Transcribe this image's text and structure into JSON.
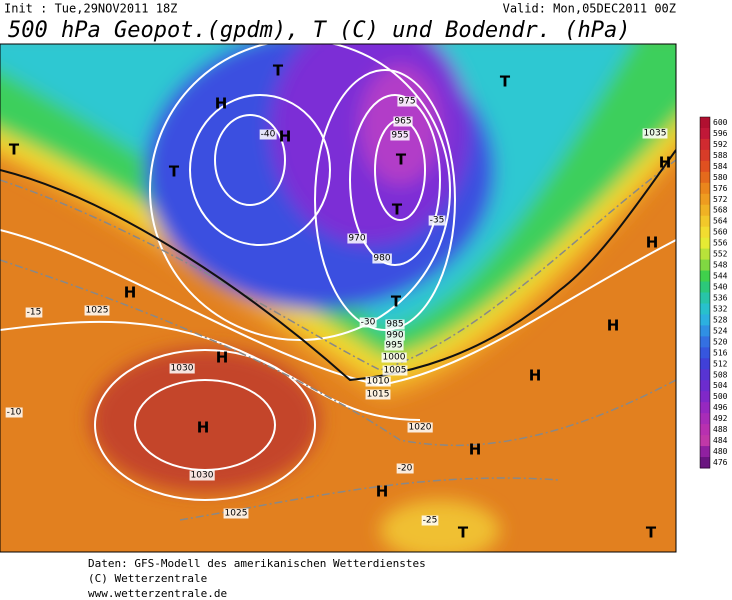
{
  "header": {
    "init": "Init : Tue,29NOV2011 18Z",
    "valid": "Valid: Mon,05DEC2011 00Z",
    "title": "500 hPa Geopot.(gpdm), T (C) und Bodendr. (hPa)"
  },
  "colorbar": {
    "ticks": [
      600,
      596,
      592,
      588,
      584,
      580,
      576,
      572,
      568,
      564,
      560,
      556,
      552,
      548,
      544,
      540,
      536,
      532,
      528,
      524,
      520,
      516,
      512,
      508,
      504,
      500,
      496,
      492,
      488,
      484,
      480,
      476
    ]
  },
  "map": {
    "symbols": [
      "H",
      "H",
      "H",
      "H",
      "H",
      "H",
      "H",
      "H",
      "H",
      "H",
      "H",
      "T",
      "T",
      "T",
      "T",
      "T",
      "T",
      "T",
      "T",
      "T"
    ],
    "labels": [
      "1030",
      "1025",
      "1030",
      "1025",
      "1020",
      "1015",
      "1010",
      "1005",
      "1000",
      "995",
      "990",
      "985",
      "975",
      "965",
      "955",
      "970",
      "980",
      "1035",
      "-15",
      "-10",
      "-20",
      "-25",
      "-30",
      "-35",
      "-40"
    ]
  },
  "footer": {
    "lines": [
      "Daten: GFS-Modell des amerikanischen Wetterdienstes",
      "(C) Wetterzentrale",
      "www.wetterzentrale.de"
    ]
  }
}
